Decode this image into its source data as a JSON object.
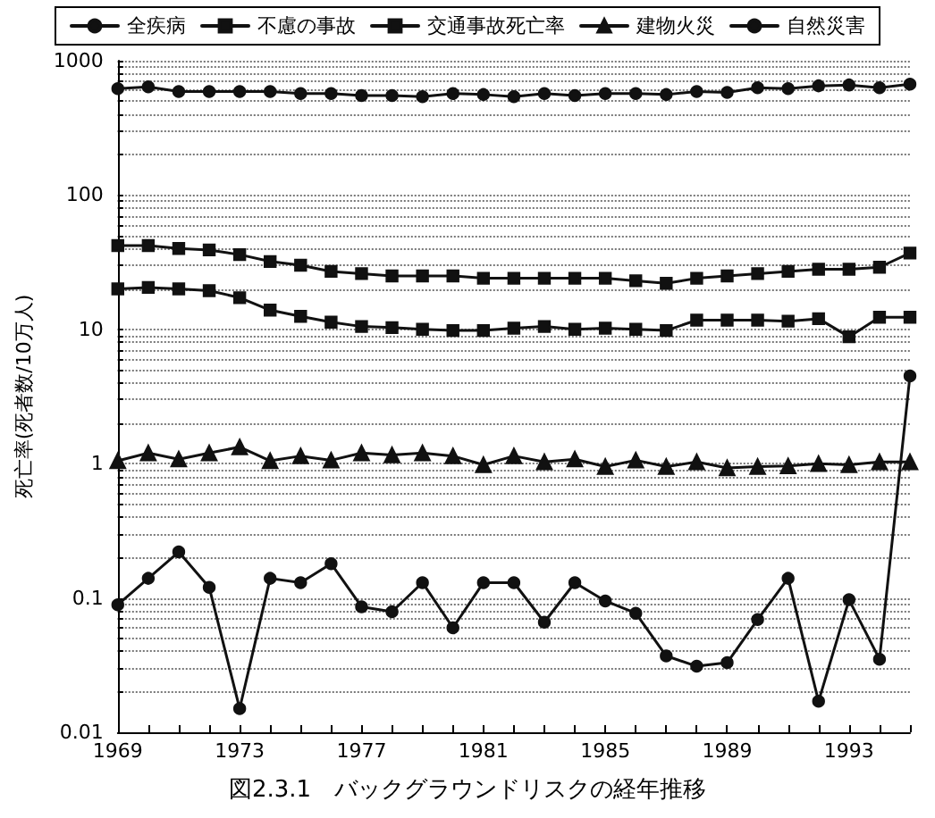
{
  "chart_data": {
    "type": "line",
    "title": "図2.3.1　バックグラウンドリスクの経年推移",
    "ylabel": "死亡率(死者数/10万人)",
    "x": [
      1969,
      1970,
      1971,
      1972,
      1973,
      1974,
      1975,
      1976,
      1977,
      1978,
      1979,
      1980,
      1981,
      1982,
      1983,
      1984,
      1985,
      1986,
      1987,
      1988,
      1989,
      1990,
      1991,
      1992,
      1993,
      1994,
      1995
    ],
    "xlim": [
      1969,
      1995
    ],
    "xticks": [
      1969,
      {
        "value": 1970,
        "label": null
      },
      {
        "value": 1971,
        "label": null
      },
      {
        "value": 1972,
        "label": null
      },
      1973,
      {
        "value": 1974,
        "label": null
      },
      {
        "value": 1975,
        "label": null
      },
      {
        "value": 1976,
        "label": null
      },
      1977,
      {
        "value": 1978,
        "label": null
      },
      {
        "value": 1979,
        "label": null
      },
      {
        "value": 1980,
        "label": null
      },
      1981,
      {
        "value": 1982,
        "label": null
      },
      {
        "value": 1983,
        "label": null
      },
      {
        "value": 1984,
        "label": null
      },
      1985,
      {
        "value": 1986,
        "label": null
      },
      {
        "value": 1987,
        "label": null
      },
      {
        "value": 1988,
        "label": null
      },
      1989,
      {
        "value": 1990,
        "label": null
      },
      {
        "value": 1991,
        "label": null
      },
      {
        "value": 1992,
        "label": null
      },
      1993,
      {
        "value": 1994,
        "label": null
      },
      {
        "value": 1995,
        "label": null
      }
    ],
    "ylim": [
      0.01,
      1000
    ],
    "yticks": [
      0.01,
      {
        "value": 0.02,
        "label": null
      },
      {
        "value": 0.03,
        "label": null
      },
      {
        "value": 0.04,
        "label": null
      },
      {
        "value": 0.05,
        "label": null
      },
      {
        "value": 0.06,
        "label": null
      },
      {
        "value": 0.07,
        "label": null
      },
      {
        "value": 0.08,
        "label": null
      },
      {
        "value": 0.09,
        "label": null
      },
      0.1,
      {
        "value": 0.2,
        "label": null
      },
      {
        "value": 0.3,
        "label": null
      },
      {
        "value": 0.4,
        "label": null
      },
      {
        "value": 0.5,
        "label": null
      },
      {
        "value": 0.6,
        "label": null
      },
      {
        "value": 0.7,
        "label": null
      },
      {
        "value": 0.8,
        "label": null
      },
      {
        "value": 0.9,
        "label": null
      },
      1,
      {
        "value": 2,
        "label": null
      },
      {
        "value": 3,
        "label": null
      },
      {
        "value": 4,
        "label": null
      },
      {
        "value": 5,
        "label": null
      },
      {
        "value": 6,
        "label": null
      },
      {
        "value": 7,
        "label": null
      },
      {
        "value": 8,
        "label": null
      },
      {
        "value": 9,
        "label": null
      },
      10,
      {
        "value": 20,
        "label": null
      },
      {
        "value": 30,
        "label": null
      },
      {
        "value": 40,
        "label": null
      },
      {
        "value": 50,
        "label": null
      },
      {
        "value": 60,
        "label": null
      },
      {
        "value": 70,
        "label": null
      },
      {
        "value": 80,
        "label": null
      },
      {
        "value": 90,
        "label": null
      },
      100,
      {
        "value": 200,
        "label": null
      },
      {
        "value": 300,
        "label": null
      },
      {
        "value": 400,
        "label": null
      },
      {
        "value": 500,
        "label": null
      },
      {
        "value": 600,
        "label": null
      },
      {
        "value": 700,
        "label": null
      },
      {
        "value": 800,
        "label": null
      },
      {
        "value": 900,
        "label": null
      },
      1000
    ],
    "log": true,
    "grid": "y",
    "legend": "top",
    "line_style": "solid",
    "series": [
      {
        "name": "全疾病",
        "color": "#111111",
        "marker": "circle",
        "values": [
          620,
          640,
          590,
          590,
          590,
          590,
          570,
          570,
          550,
          550,
          540,
          570,
          560,
          540,
          570,
          550,
          570,
          570,
          560,
          590,
          580,
          630,
          620,
          650,
          660,
          630,
          670
        ]
      },
      {
        "name": "不慮の事故",
        "color": "#111111",
        "marker": "square",
        "values": [
          42,
          42,
          40,
          39,
          36,
          32,
          30,
          27,
          26,
          25,
          25,
          25,
          24,
          24,
          24,
          24,
          24,
          23,
          22,
          24,
          25,
          26,
          27,
          28,
          28,
          29,
          37
        ]
      },
      {
        "name": "交通事故死亡率",
        "color": "#111111",
        "marker": "square",
        "values": [
          20,
          20.5,
          20,
          19.4,
          17.2,
          13.9,
          12.5,
          11.3,
          10.5,
          10.3,
          10,
          9.8,
          9.8,
          10.2,
          10.5,
          10,
          10.2,
          10,
          9.8,
          11.7,
          11.7,
          11.7,
          11.5,
          12,
          8.8,
          12.3,
          12.3
        ]
      },
      {
        "name": "建物火災",
        "color": "#111111",
        "marker": "triangle",
        "values": [
          1.05,
          1.2,
          1.08,
          1.2,
          1.33,
          1.05,
          1.14,
          1.06,
          1.2,
          1.16,
          1.2,
          1.14,
          0.98,
          1.14,
          1.03,
          1.08,
          0.95,
          1.06,
          0.95,
          1.03,
          0.93,
          0.95,
          0.96,
          1.0,
          0.98,
          1.03,
          1.03
        ]
      },
      {
        "name": "自然災害",
        "color": "#111111",
        "marker": "circle",
        "values": [
          0.089,
          0.14,
          0.22,
          0.12,
          0.015,
          0.14,
          0.13,
          0.18,
          0.086,
          0.079,
          0.13,
          0.06,
          0.13,
          0.13,
          0.066,
          0.13,
          0.095,
          0.077,
          0.037,
          0.031,
          0.033,
          0.069,
          0.14,
          0.017,
          0.097,
          0.035,
          4.5
        ]
      }
    ]
  }
}
